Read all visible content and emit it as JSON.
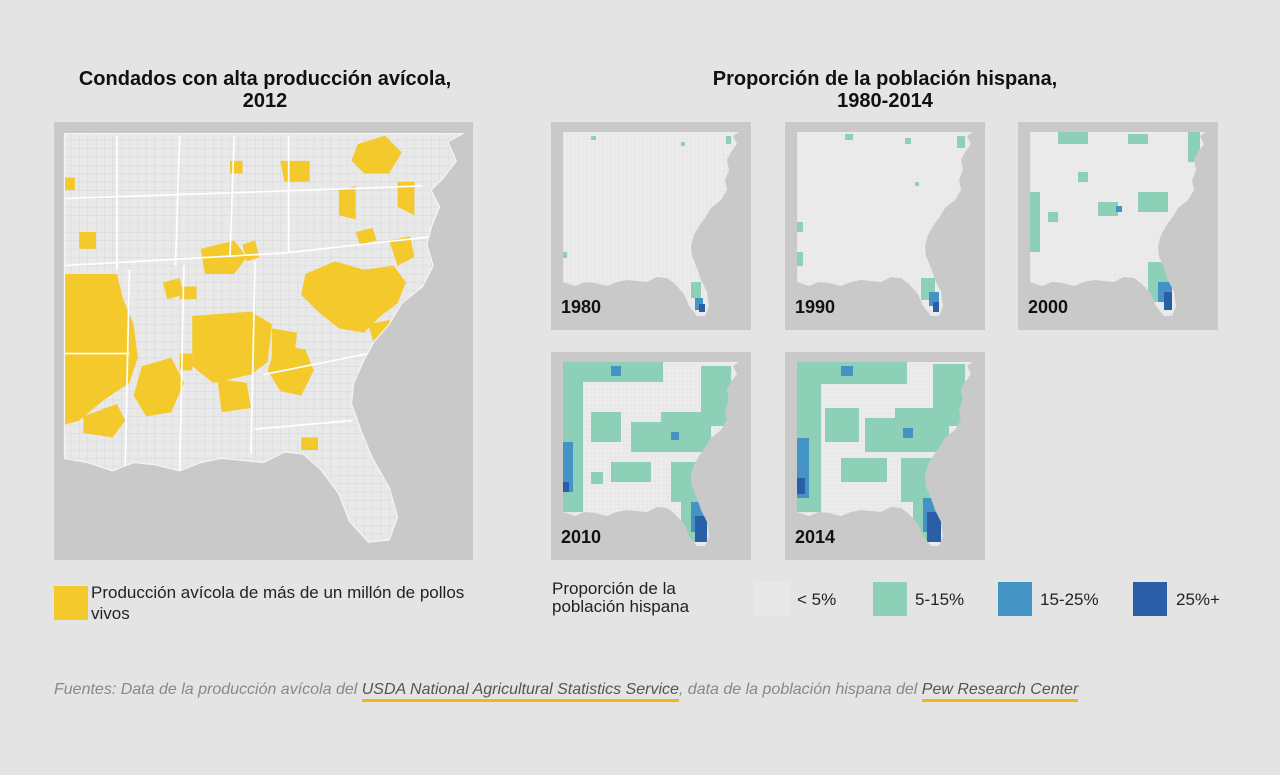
{
  "left_panel": {
    "title_line1": "Condados con alta producción avícola,",
    "title_line2": "2012",
    "legend_label": "Producción avícola de más de un millón de pollos vivos",
    "legend_color": "#f4c92c"
  },
  "right_panel": {
    "title_line1": "Proporción de la población hispana,",
    "title_line2": "1980-2014",
    "maps": [
      {
        "year": "1980"
      },
      {
        "year": "1990"
      },
      {
        "year": "2000"
      },
      {
        "year": "2010"
      },
      {
        "year": "2014"
      }
    ],
    "legend_title": "Proporción de la población hispana",
    "legend_items": [
      {
        "label": "< 5%",
        "color": "#e8e8e8"
      },
      {
        "label": "5-15%",
        "color": "#8ecfb8"
      },
      {
        "label": "15-25%",
        "color": "#4394c5"
      },
      {
        "label": "25%+",
        "color": "#2a5fa8"
      }
    ]
  },
  "colors": {
    "background": "#e4e4e4",
    "ocean": "#c9c9c9",
    "land": "#e9e9e9",
    "link_underline": "#f4b41a"
  },
  "sources": {
    "prefix": "Fuentes: Data de la producción avícola del ",
    "link1": "USDA National Agricultural Statistics Service",
    "middle": ", data de la población hispana del ",
    "link2": "Pew Research Center"
  }
}
